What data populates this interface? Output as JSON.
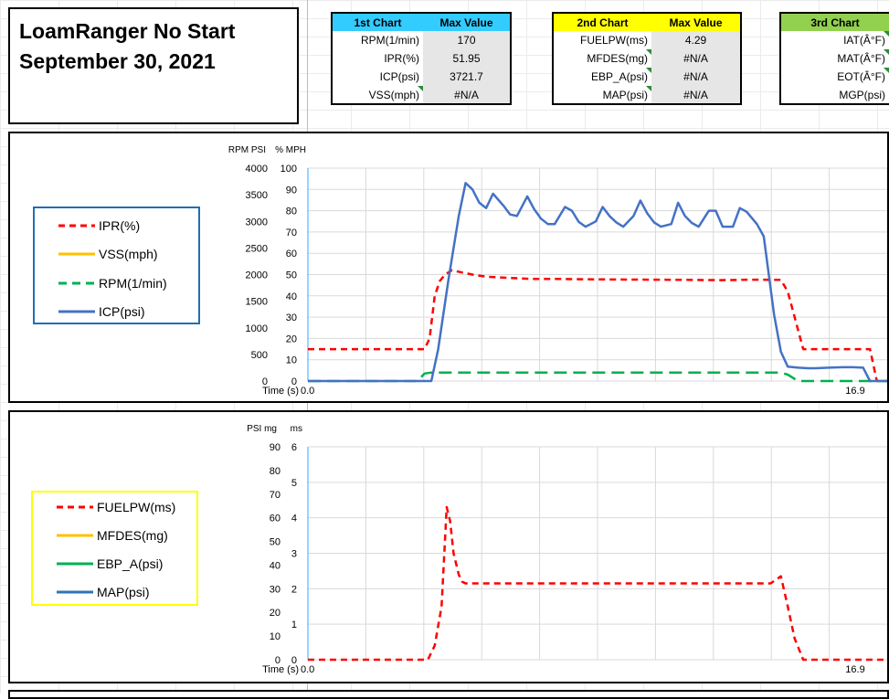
{
  "title": {
    "line1": "LoamRanger No Start",
    "line2": "September 30, 2021"
  },
  "tables": [
    {
      "header": [
        "1st Chart",
        "Max Value"
      ],
      "header_color": "#33ccff",
      "rows": [
        [
          "RPM(1/min)",
          "170"
        ],
        [
          "IPR(%)",
          "51.95"
        ],
        [
          "ICP(psi)",
          "3721.7"
        ],
        [
          "VSS(mph)",
          "#N/A"
        ]
      ]
    },
    {
      "header": [
        "2nd Chart",
        "Max Value"
      ],
      "header_color": "#ffff00",
      "rows": [
        [
          "FUELPW(ms)",
          "4.29"
        ],
        [
          "MFDES(mg)",
          "#N/A"
        ],
        [
          "EBP_A(psi)",
          "#N/A"
        ],
        [
          "MAP(psi)",
          "#N/A"
        ]
      ]
    },
    {
      "header": [
        "3rd Chart"
      ],
      "header_color": "#92d050",
      "rows": [
        [
          "IAT(Â°F)"
        ],
        [
          "MAT(Â°F)"
        ],
        [
          "EOT(Â°F)"
        ],
        [
          "MGP(psi)"
        ]
      ]
    }
  ],
  "legend1": {
    "border_color": "#1f6fb5",
    "items": [
      {
        "label": "IPR(%)",
        "color": "#ff0000",
        "style": "dashed"
      },
      {
        "label": "VSS(mph)",
        "color": "#ffc000",
        "style": "solid"
      },
      {
        "label": "RPM(1/min)",
        "color": "#00b050",
        "style": "dashed"
      },
      {
        "label": "ICP(psi)",
        "color": "#4472c4",
        "style": "solid"
      }
    ]
  },
  "legend2": {
    "border_color": "#ffff00",
    "items": [
      {
        "label": "FUELPW(ms)",
        "color": "#ff0000",
        "style": "dashed"
      },
      {
        "label": "MFDES(mg)",
        "color": "#ffc000",
        "style": "solid"
      },
      {
        "label": "EBP_A(psi)",
        "color": "#00b050",
        "style": "solid"
      },
      {
        "label": "MAP(psi)",
        "color": "#2e75b6",
        "style": "solid"
      }
    ]
  },
  "chart_data": [
    {
      "type": "line",
      "axis_units": [
        "RPM PSI",
        "% MPH"
      ],
      "xlabel": "Time (s)",
      "x_ticks": [
        "0.0",
        "16.9"
      ],
      "xlim": [
        0,
        16.9
      ],
      "y_axes": [
        {
          "ticks": [
            "4000",
            "3500",
            "3000",
            "2500",
            "2000",
            "1500",
            "1000",
            "500",
            "0"
          ],
          "lim": [
            0,
            4000
          ]
        },
        {
          "ticks": [
            "100",
            "90",
            "80",
            "70",
            "60",
            "50",
            "40",
            "30",
            "20",
            "10",
            "0"
          ],
          "lim": [
            0,
            100
          ]
        }
      ],
      "series": [
        {
          "name": "IPR(%)",
          "color": "#ff0000",
          "dash": true,
          "axis": 1,
          "x": [
            0,
            3.2,
            3.4,
            3.55,
            3.7,
            3.85,
            4.0,
            4.2,
            4.5,
            4.8,
            5.2,
            5.8,
            6.5,
            7.2,
            8.0,
            9.0,
            10.0,
            11.0,
            12.0,
            13.0,
            13.8,
            14.0,
            14.2,
            14.45,
            14.6,
            15.5,
            16.4,
            16.6,
            16.9
          ],
          "y": [
            15,
            15,
            15,
            20,
            40,
            47,
            50,
            52,
            51,
            50,
            49,
            48.5,
            48,
            48,
            47.8,
            47.7,
            47.6,
            47.5,
            47.4,
            47.6,
            47.5,
            42,
            30,
            15,
            15,
            15,
            15,
            0,
            0
          ]
        },
        {
          "name": "VSS(mph)",
          "color": "#ffc000",
          "dash": false,
          "axis": 1,
          "x": [],
          "y": []
        },
        {
          "name": "RPM(1/min)",
          "color": "#00b050",
          "dash": true,
          "axis": 0,
          "x": [
            0,
            3.2,
            3.4,
            3.6,
            4.0,
            5.0,
            6.0,
            7.0,
            8.0,
            9.0,
            10.0,
            11.0,
            12.0,
            13.0,
            13.8,
            14.0,
            14.3,
            16.9
          ],
          "y": [
            0,
            0,
            140,
            160,
            160,
            160,
            160,
            160,
            160,
            160,
            160,
            160,
            160,
            160,
            160,
            120,
            0,
            0
          ]
        },
        {
          "name": "ICP(psi)",
          "color": "#4472c4",
          "dash": false,
          "axis": 0,
          "x": [
            0,
            3.6,
            3.8,
            4.1,
            4.4,
            4.6,
            4.8,
            5.0,
            5.2,
            5.4,
            5.7,
            5.9,
            6.1,
            6.4,
            6.6,
            6.8,
            7.0,
            7.2,
            7.5,
            7.7,
            7.9,
            8.1,
            8.4,
            8.6,
            8.8,
            9.0,
            9.2,
            9.5,
            9.7,
            9.9,
            10.1,
            10.3,
            10.6,
            10.8,
            11.0,
            11.2,
            11.4,
            11.7,
            11.9,
            12.1,
            12.4,
            12.6,
            12.8,
            13.1,
            13.3,
            13.6,
            13.8,
            14.0,
            14.3,
            14.6,
            14.8,
            15.2,
            15.6,
            15.9,
            16.2,
            16.4,
            16.9
          ],
          "y": [
            0,
            0,
            600,
            1900,
            3100,
            3720,
            3600,
            3350,
            3250,
            3520,
            3300,
            3130,
            3100,
            3470,
            3230,
            3050,
            2950,
            2950,
            3270,
            3200,
            2990,
            2900,
            3000,
            3270,
            3100,
            2980,
            2900,
            3100,
            3390,
            3150,
            2980,
            2900,
            2950,
            3350,
            3100,
            2970,
            2900,
            3200,
            3200,
            2900,
            2900,
            3250,
            3180,
            2950,
            2720,
            1250,
            550,
            270,
            250,
            240,
            240,
            250,
            260,
            260,
            250,
            0,
            0
          ]
        }
      ]
    },
    {
      "type": "line",
      "axis_units": [
        "PSI mg",
        "ms"
      ],
      "xlabel": "Time (s)",
      "x_ticks": [
        "0.0",
        "16.9"
      ],
      "xlim": [
        0,
        16.9
      ],
      "y_axes": [
        {
          "ticks": [
            "90",
            "80",
            "70",
            "60",
            "50",
            "40",
            "30",
            "20",
            "10",
            "0"
          ],
          "lim": [
            0,
            90
          ]
        },
        {
          "ticks": [
            "6",
            "5",
            "4",
            "3",
            "2",
            "1",
            "0"
          ],
          "lim": [
            0,
            6
          ]
        }
      ],
      "series": [
        {
          "name": "FUELPW(ms)",
          "color": "#ff0000",
          "dash": true,
          "axis": 1,
          "x": [
            0,
            3.5,
            3.7,
            3.9,
            4.05,
            4.15,
            4.25,
            4.4,
            4.5,
            4.6,
            4.7,
            5.0,
            6.0,
            8.0,
            10.0,
            12.0,
            13.5,
            13.8,
            14.0,
            14.2,
            14.45,
            14.6,
            16.9
          ],
          "y": [
            0,
            0,
            0.4,
            1.5,
            4.3,
            3.9,
            3.0,
            2.4,
            2.2,
            2.15,
            2.15,
            2.15,
            2.15,
            2.15,
            2.15,
            2.15,
            2.15,
            2.35,
            1.5,
            0.6,
            0,
            0,
            0
          ]
        },
        {
          "name": "MFDES(mg)",
          "color": "#ffc000",
          "dash": false,
          "axis": 0,
          "x": [],
          "y": []
        },
        {
          "name": "EBP_A(psi)",
          "color": "#00b050",
          "dash": false,
          "axis": 0,
          "x": [],
          "y": []
        },
        {
          "name": "MAP(psi)",
          "color": "#2e75b6",
          "dash": false,
          "axis": 0,
          "x": [],
          "y": []
        }
      ]
    }
  ]
}
